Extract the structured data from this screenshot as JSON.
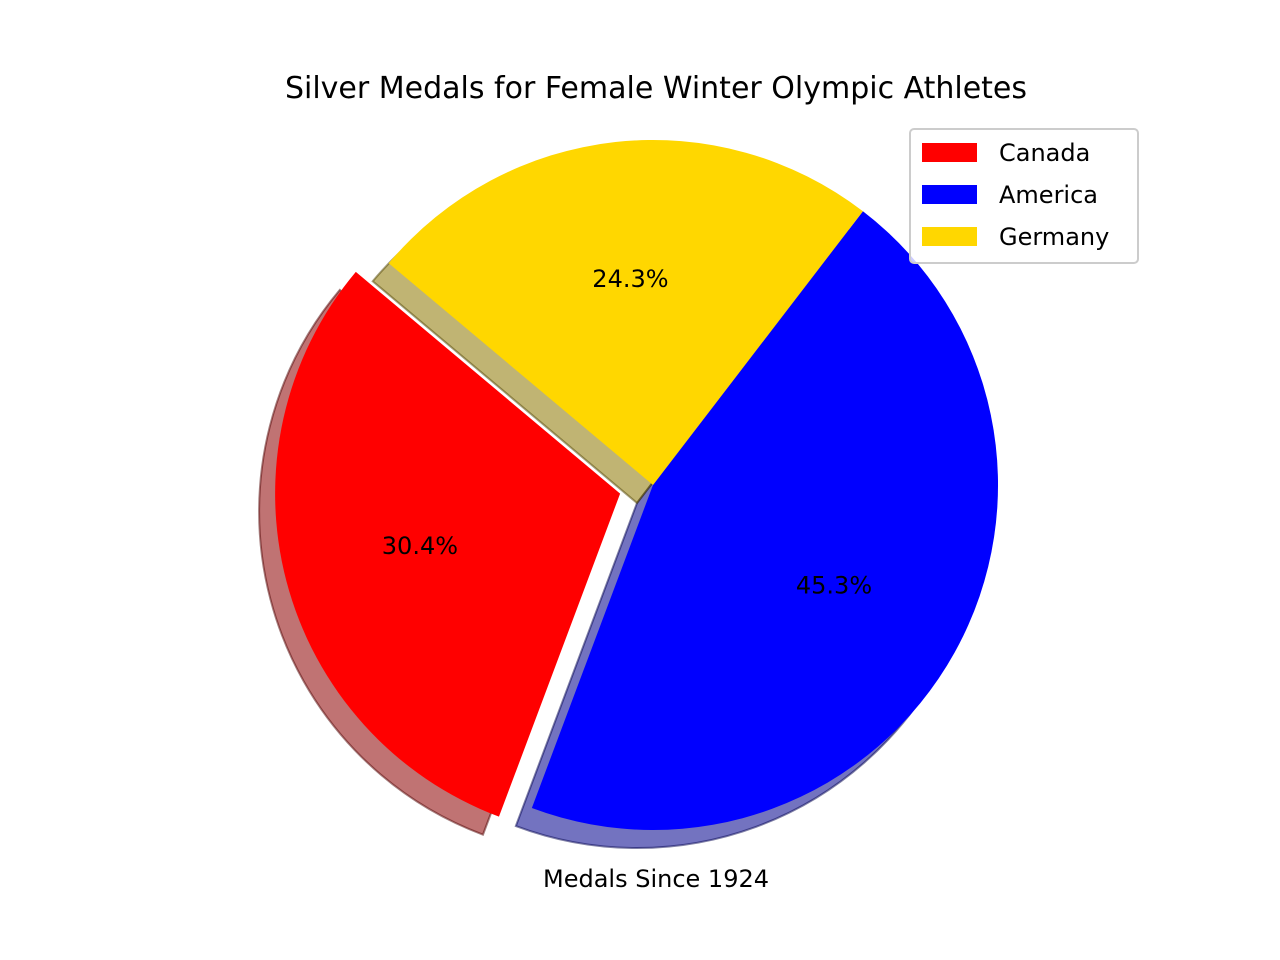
{
  "chart_data": {
    "type": "pie",
    "title": "Silver Medals for Female Winter Olympic Athletes",
    "xlabel": "Medals Since 1924",
    "categories": [
      "Canada",
      "America",
      "Germany"
    ],
    "values": [
      30.4,
      45.3,
      24.3
    ],
    "labels": [
      "30.4%",
      "45.3%",
      "24.3%"
    ],
    "colors": [
      "#ff0000",
      "#0000ff",
      "#ffd700"
    ],
    "explode": [
      0.1,
      0,
      0
    ],
    "shadow": true,
    "start_angle_deg": 140,
    "legend": {
      "placement": "upper right",
      "entries": [
        "Canada",
        "America",
        "Germany"
      ]
    }
  }
}
